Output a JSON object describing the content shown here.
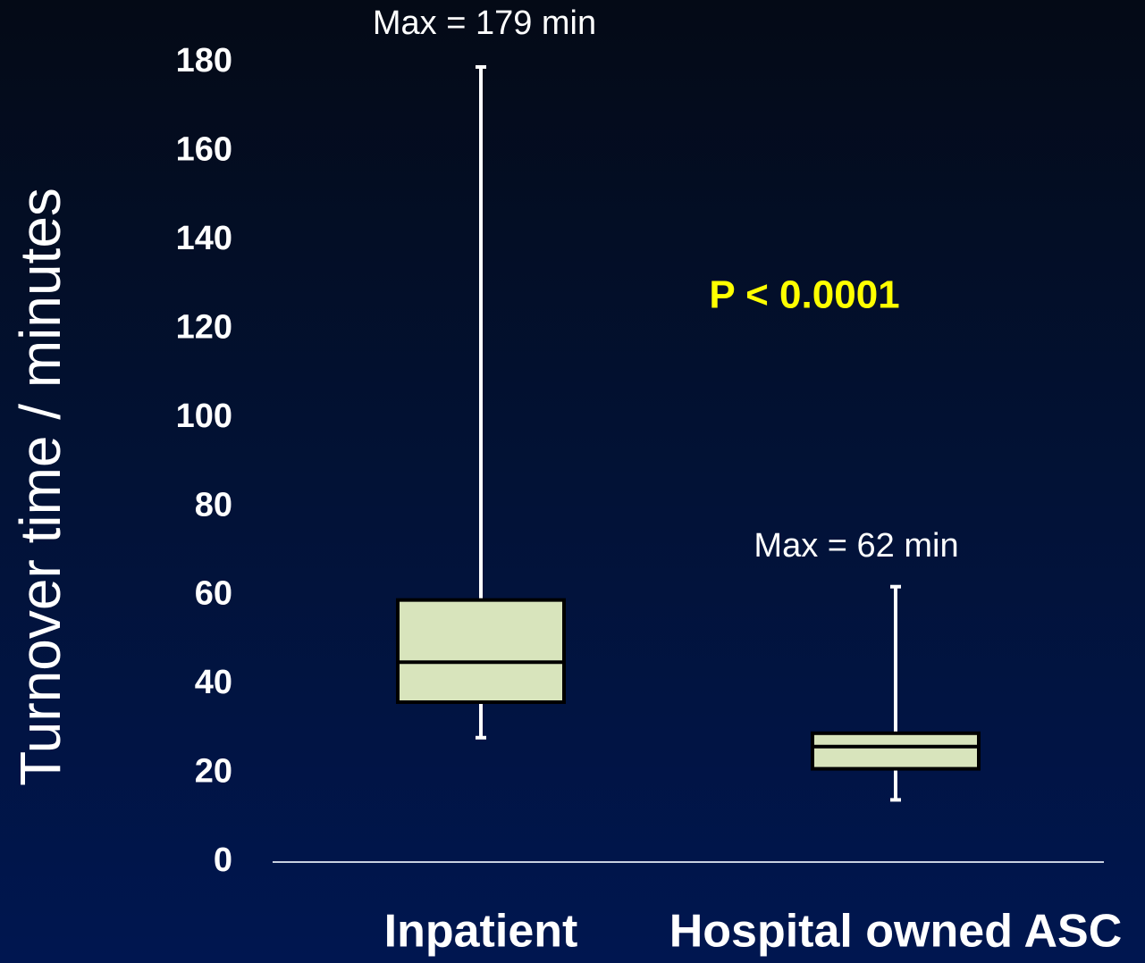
{
  "chart_data": {
    "type": "box",
    "y_label": "Turnover time / minutes",
    "categories": [
      "Inpatient",
      "Hospital owned ASC"
    ],
    "boxes": [
      {
        "min": 28,
        "q1": 36,
        "median": 45,
        "q3": 59,
        "max": 179
      },
      {
        "min": 14,
        "q1": 21,
        "median": 26,
        "q3": 29,
        "max": 62
      }
    ],
    "box_color": "#d8e4bc",
    "whisker_color": "#ffffff",
    "ylim": [
      0,
      180
    ],
    "yticks": [
      0,
      20,
      40,
      60,
      80,
      100,
      120,
      140,
      160,
      180
    ],
    "grid": false,
    "annotations": [
      "Max = 179 min",
      "Max = 62 min",
      "P < 0.0001"
    ]
  }
}
